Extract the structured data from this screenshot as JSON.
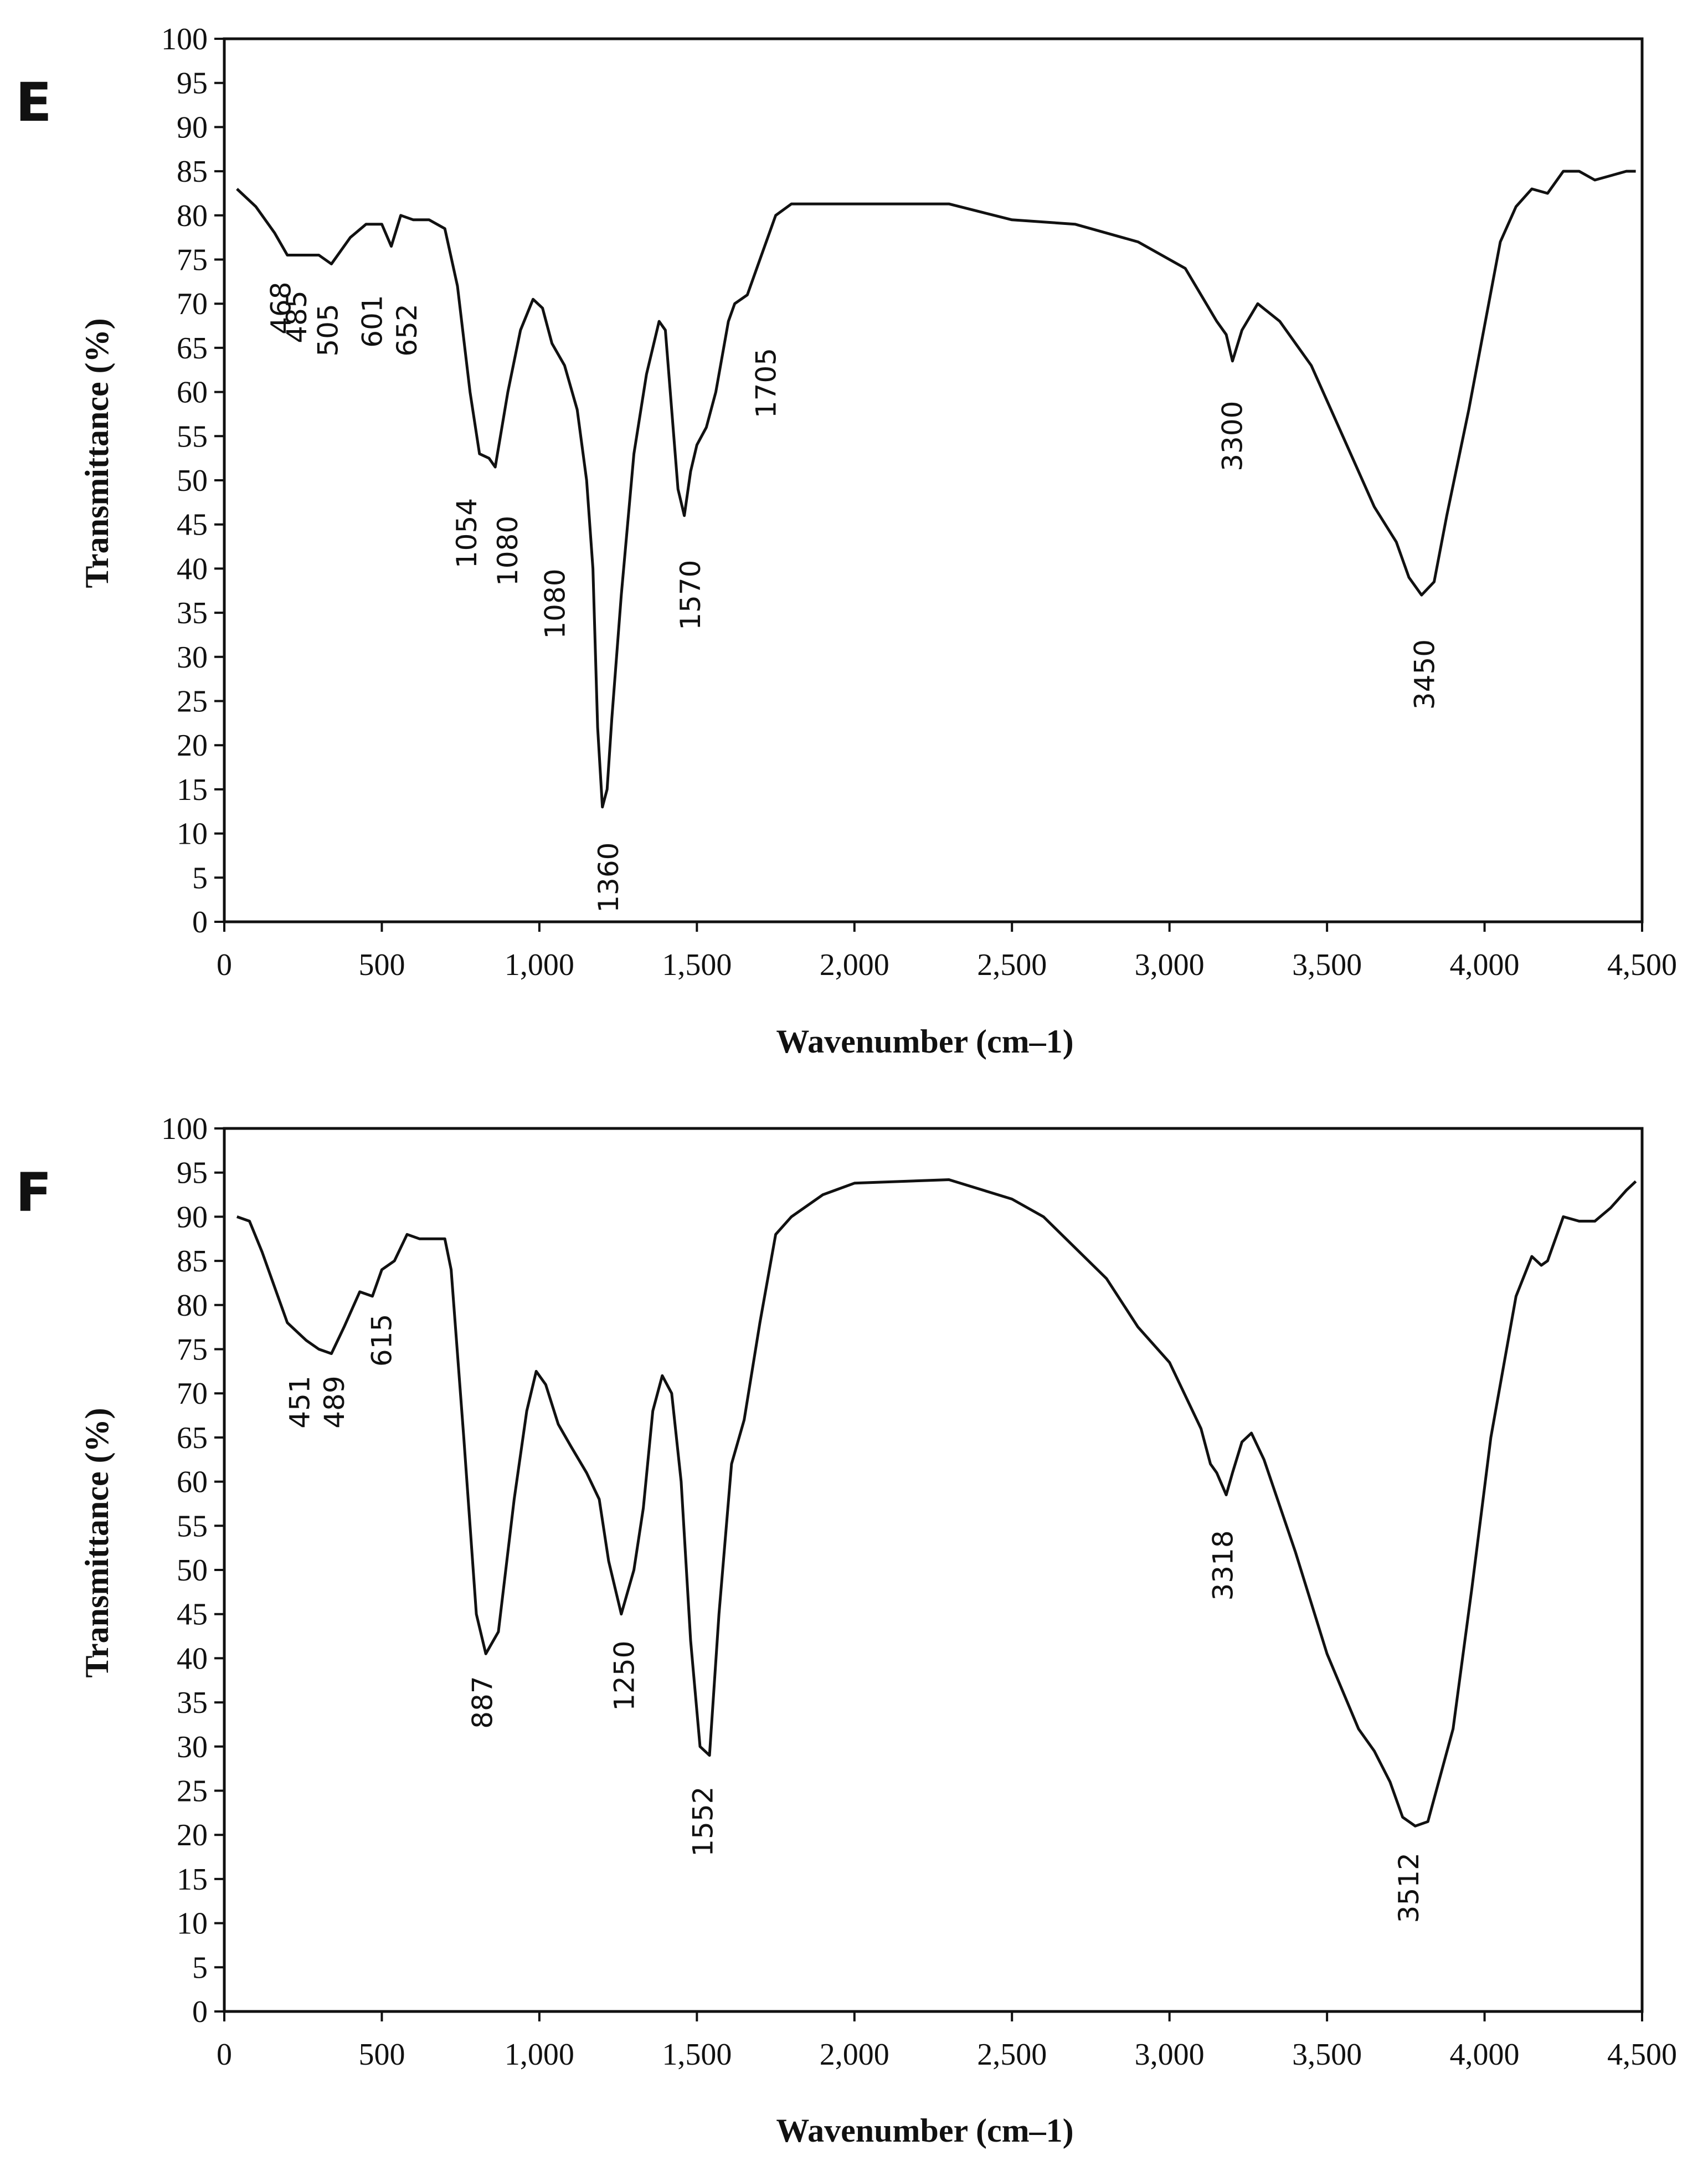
{
  "figure": "FTIR transmittance spectra, panels E and F",
  "colors": {
    "line": "#111111",
    "axis": "#111111",
    "background": "#ffffff"
  },
  "chart_data": [
    {
      "type": "line",
      "panel": "E",
      "title": "",
      "xlabel": "Wavenumber (cm–1)",
      "ylabel": "Transmittance (%)",
      "xlim": [
        0,
        4500
      ],
      "ylim": [
        0,
        100
      ],
      "xticks": [
        0,
        500,
        1000,
        1500,
        2000,
        2500,
        3000,
        3500,
        4000,
        4500
      ],
      "xtick_labels": [
        "0",
        "500",
        "1,000",
        "1,500",
        "2,000",
        "2,500",
        "3,000",
        "3,500",
        "4,000",
        "4,500"
      ],
      "yticks": [
        0,
        5,
        10,
        15,
        20,
        25,
        30,
        35,
        40,
        45,
        50,
        55,
        60,
        65,
        70,
        75,
        80,
        85,
        90,
        95,
        100
      ],
      "grid": false,
      "series": [
        {
          "name": "E",
          "x": [
            40,
            100,
            160,
            200,
            250,
            300,
            340,
            400,
            450,
            500,
            530,
            560,
            600,
            650,
            700,
            740,
            780,
            810,
            840,
            860,
            900,
            940,
            980,
            1010,
            1040,
            1080,
            1120,
            1150,
            1170,
            1185,
            1200,
            1215,
            1230,
            1260,
            1300,
            1340,
            1380,
            1400,
            1420,
            1440,
            1460,
            1480,
            1500,
            1530,
            1560,
            1600,
            1620,
            1660,
            1700,
            1750,
            1800,
            2000,
            2300,
            2500,
            2700,
            2900,
            3050,
            3100,
            3150,
            3180,
            3200,
            3230,
            3280,
            3350,
            3450,
            3550,
            3650,
            3720,
            3760,
            3800,
            3840,
            3880,
            3950,
            4050,
            4100,
            4150,
            4200,
            4250,
            4300,
            4350,
            4400,
            4450,
            4480
          ],
          "y": [
            83,
            81,
            78,
            75.5,
            75.5,
            75.5,
            74.5,
            77.5,
            79,
            79,
            76.5,
            80,
            79.5,
            79.5,
            78.5,
            72,
            60,
            53,
            52.5,
            51.5,
            60,
            67,
            70.5,
            69.5,
            65.5,
            63,
            58,
            50,
            40,
            22,
            13,
            15,
            23,
            37,
            53,
            62,
            68,
            67,
            58,
            49,
            46,
            51,
            54,
            56,
            60,
            68,
            70,
            71,
            75,
            80,
            81.3,
            81.3,
            81.3,
            79.5,
            79,
            77,
            74,
            71,
            68,
            66.5,
            63.5,
            67,
            70,
            68,
            63,
            55,
            47,
            43,
            39,
            37,
            38.5,
            46,
            58,
            77,
            81,
            83,
            82.5,
            85,
            85,
            84,
            84.5,
            85,
            85
          ]
        }
      ],
      "annotations": [
        {
          "label": "468",
          "x": 180,
          "y": 72.5
        },
        {
          "label": "485",
          "x": 230,
          "y": 71.5
        },
        {
          "label": "505",
          "x": 330,
          "y": 70
        },
        {
          "label": "601",
          "x": 470,
          "y": 71
        },
        {
          "label": "652",
          "x": 580,
          "y": 70
        },
        {
          "label": "1054",
          "x": 770,
          "y": 48
        },
        {
          "label": "1080",
          "x": 900,
          "y": 46
        },
        {
          "label": "1080",
          "x": 1050,
          "y": 40
        },
        {
          "label": "1360",
          "x": 1220,
          "y": 9
        },
        {
          "label": "1570",
          "x": 1480,
          "y": 41
        },
        {
          "label": "1705",
          "x": 1720,
          "y": 65
        },
        {
          "label": "3300",
          "x": 3200,
          "y": 59
        },
        {
          "label": "3450",
          "x": 3810,
          "y": 32
        }
      ]
    },
    {
      "type": "line",
      "panel": "F",
      "title": "",
      "xlabel": "Wavenumber (cm–1)",
      "ylabel": "Transmittance (%)",
      "xlim": [
        0,
        4500
      ],
      "ylim": [
        0,
        100
      ],
      "xticks": [
        0,
        500,
        1000,
        1500,
        2000,
        2500,
        3000,
        3500,
        4000,
        4500
      ],
      "xtick_labels": [
        "0",
        "500",
        "1,000",
        "1,500",
        "2,000",
        "2,500",
        "3,000",
        "3,500",
        "4,000",
        "4,500"
      ],
      "yticks": [
        0,
        5,
        10,
        15,
        20,
        25,
        30,
        35,
        40,
        45,
        50,
        55,
        60,
        65,
        70,
        75,
        80,
        85,
        90,
        95,
        100
      ],
      "grid": false,
      "series": [
        {
          "name": "F",
          "x": [
            40,
            80,
            120,
            160,
            200,
            260,
            300,
            340,
            380,
            430,
            470,
            500,
            540,
            580,
            620,
            660,
            700,
            720,
            760,
            800,
            830,
            870,
            920,
            960,
            990,
            1020,
            1060,
            1100,
            1150,
            1190,
            1220,
            1260,
            1300,
            1330,
            1360,
            1390,
            1420,
            1450,
            1480,
            1510,
            1540,
            1570,
            1610,
            1650,
            1700,
            1750,
            1800,
            1900,
            2000,
            2300,
            2500,
            2600,
            2700,
            2800,
            2900,
            3000,
            3100,
            3130,
            3150,
            3180,
            3200,
            3230,
            3260,
            3300,
            3400,
            3500,
            3600,
            3650,
            3700,
            3740,
            3780,
            3820,
            3900,
            3960,
            4020,
            4100,
            4150,
            4180,
            4200,
            4250,
            4300,
            4350,
            4400,
            4450,
            4480
          ],
          "y": [
            90,
            89.5,
            86,
            82,
            78,
            76,
            75,
            74.5,
            77.5,
            81.5,
            81,
            84,
            85,
            88,
            87.5,
            87.5,
            87.5,
            84,
            65,
            45,
            40.5,
            43,
            58,
            68,
            72.5,
            71,
            66.5,
            64,
            61,
            58,
            51,
            45,
            50,
            57,
            68,
            72,
            70,
            60,
            42,
            30,
            29,
            45,
            62,
            67,
            78,
            88,
            90,
            92.5,
            93.8,
            94.2,
            92,
            90,
            86.5,
            83,
            77.5,
            73.5,
            66,
            62,
            61,
            58.5,
            61,
            64.5,
            65.5,
            62.5,
            52,
            40.5,
            32,
            29.5,
            26,
            22,
            21,
            21.5,
            32,
            48,
            65,
            81,
            85.5,
            84.5,
            85,
            90,
            89.5,
            89.5,
            91,
            93,
            94
          ]
        }
      ],
      "annotations": [
        {
          "label": "451",
          "x": 240,
          "y": 72
        },
        {
          "label": "489",
          "x": 350,
          "y": 72
        },
        {
          "label": "615",
          "x": 500,
          "y": 79
        },
        {
          "label": "887",
          "x": 820,
          "y": 38
        },
        {
          "label": "1250",
          "x": 1270,
          "y": 42
        },
        {
          "label": "1552",
          "x": 1520,
          "y": 25.5
        },
        {
          "label": "3318",
          "x": 3170,
          "y": 54.5
        },
        {
          "label": "3512",
          "x": 3760,
          "y": 18
        }
      ]
    }
  ]
}
